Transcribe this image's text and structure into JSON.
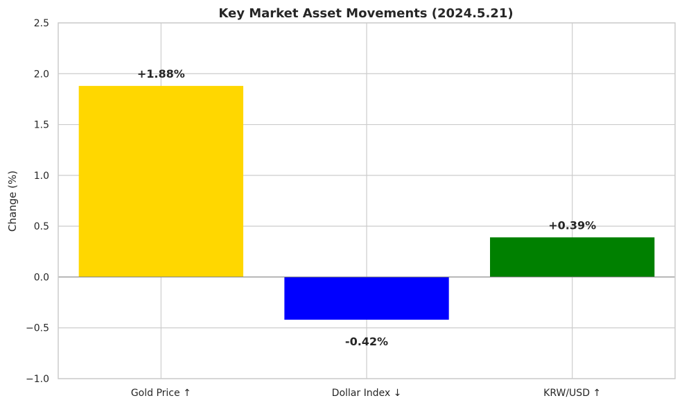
{
  "chart_data": {
    "type": "bar",
    "title": "Key Market Asset Movements (2024.5.21)",
    "xlabel": "",
    "ylabel": "Change (%)",
    "ylim": [
      -1.0,
      2.5
    ],
    "yticks": [
      -1.0,
      -0.5,
      0.0,
      0.5,
      1.0,
      1.5,
      2.0,
      2.5
    ],
    "ytick_labels": [
      "−1.0",
      "−0.5",
      "0.0",
      "0.5",
      "1.0",
      "1.5",
      "2.0",
      "2.5"
    ],
    "categories": [
      "Gold Price ↑",
      "Dollar Index ↓",
      "KRW/USD ↑"
    ],
    "values": [
      1.88,
      -0.42,
      0.39
    ],
    "data_labels": [
      "+1.88%",
      "-0.42%",
      "+0.39%"
    ],
    "colors": [
      "#FFD700",
      "#0000FF",
      "#008000"
    ],
    "grid": true,
    "legend": "none"
  }
}
